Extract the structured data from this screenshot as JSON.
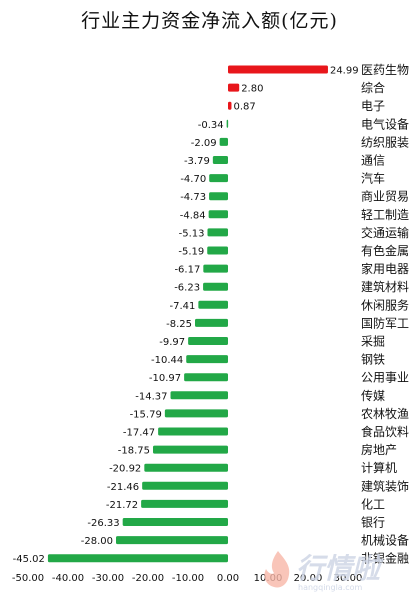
{
  "chart_data": {
    "type": "bar",
    "orientation": "horizontal",
    "title": "行业主力资金净流入额(亿元)",
    "categories": [
      "医药生物",
      "综合",
      "电子",
      "电气设备",
      "纺织服装",
      "通信",
      "汽车",
      "商业贸易",
      "轻工制造",
      "交通运输",
      "有色金属",
      "家用电器",
      "建筑材料",
      "休闲服务",
      "国防军工",
      "采掘",
      "钢铁",
      "公用事业",
      "传媒",
      "农林牧渔",
      "食品饮料",
      "房地产",
      "计算机",
      "建筑装饰",
      "化工",
      "银行",
      "机械设备",
      "非银金融"
    ],
    "values": [
      24.99,
      2.8,
      0.87,
      -0.34,
      -2.09,
      -3.79,
      -4.7,
      -4.73,
      -4.84,
      -5.13,
      -5.19,
      -6.17,
      -6.23,
      -7.41,
      -8.25,
      -9.97,
      -10.44,
      -10.97,
      -14.37,
      -15.79,
      -17.47,
      -18.75,
      -20.92,
      -21.46,
      -21.72,
      -26.33,
      -28.0,
      -45.02
    ],
    "value_labels": [
      "24.99",
      "2.80",
      "0.87",
      "-0.34",
      "-2.09",
      "-3.79",
      "-4.70",
      "-4.73",
      "-4.84",
      "-5.13",
      "-5.19",
      "-6.17",
      "-6.23",
      "-7.41",
      "-8.25",
      "-9.97",
      "-10.44",
      "-10.97",
      "-14.37",
      "-15.79",
      "-17.47",
      "-18.75",
      "-20.92",
      "-21.46",
      "-21.72",
      "-26.33",
      "-28.00",
      "-45.02"
    ],
    "xlim": [
      -50,
      30
    ],
    "xticks": [
      -50,
      -40,
      -30,
      -20,
      -10,
      0,
      10,
      20,
      30
    ],
    "xtick_labels": [
      "-50.00",
      "-40.00",
      "-30.00",
      "-20.00",
      "-10.00",
      "0.00",
      "10.00",
      "20.00",
      "30.00"
    ],
    "grid": false,
    "colors": {
      "positive": "#e8161b",
      "negative": "#22a847",
      "text": "#111111",
      "axis": "#999999"
    }
  },
  "watermark": {
    "text": "行情啦",
    "url": "hangqingla.com"
  }
}
